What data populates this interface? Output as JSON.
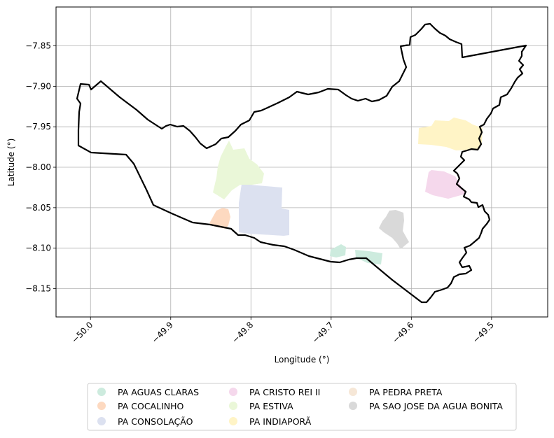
{
  "map": {
    "xlabel": "Longitude (°)",
    "ylabel": "Latitude (°)",
    "xlim": [
      -50.043,
      -49.43
    ],
    "ylim": [
      -8.185,
      -7.802
    ],
    "x_ticks": [
      -50.0,
      -49.9,
      -49.8,
      -49.7,
      -49.6,
      -49.5
    ],
    "x_tick_labels": [
      "−50.0",
      "−49.9",
      "−49.8",
      "−49.7",
      "−49.6",
      "−49.5"
    ],
    "y_ticks": [
      -7.85,
      -7.9,
      -7.95,
      -8.0,
      -8.05,
      -8.1,
      -8.15
    ],
    "y_tick_labels": [
      "−7.85",
      "−7.90",
      "−7.95",
      "−8.00",
      "−8.05",
      "−8.10",
      "−8.15"
    ],
    "grid": true,
    "legend_position": "bottom-center, below axes",
    "boundary_color": "#000000",
    "settlements": [
      {
        "name": "PA AGUAS CLARAS",
        "color": "#cdebde"
      },
      {
        "name": "PA COCALINHO",
        "color": "#fdd9c0"
      },
      {
        "name": "PA CONSOLAÇÃO",
        "color": "#dce1f0"
      },
      {
        "name": "PA CRISTO REI II",
        "color": "#f5d8ec"
      },
      {
        "name": "PA ESTIVA",
        "color": "#eaf7d8"
      },
      {
        "name": "PA INDIAPORÃ",
        "color": "#fff4c6"
      },
      {
        "name": "PA PEDRA PRETA",
        "color": "#f6e7d7"
      },
      {
        "name": "PA SAO JOSE DA AGUA BONITA",
        "color": "#d9d9d9"
      }
    ]
  }
}
